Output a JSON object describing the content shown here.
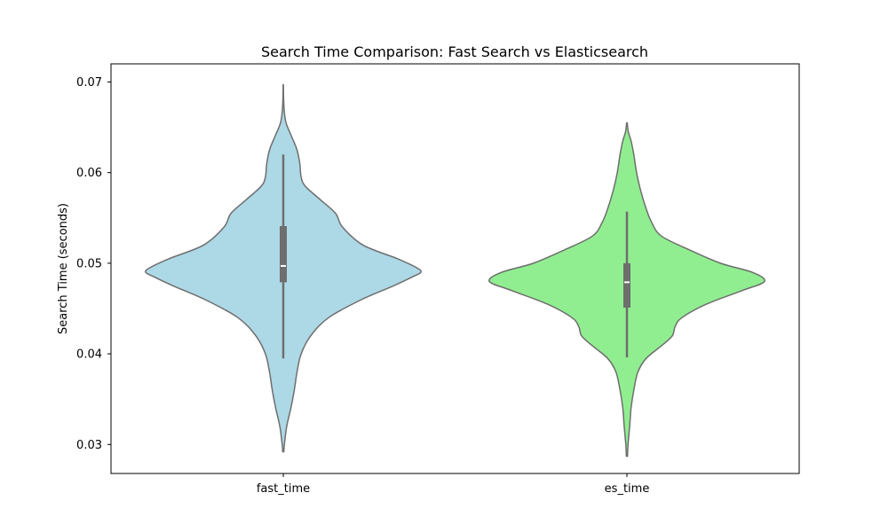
{
  "chart_data": {
    "type": "violin",
    "title": "Search Time Comparison: Fast Search vs Elasticsearch",
    "xlabel": "",
    "ylabel": "Search Time (seconds)",
    "categories": [
      "fast_time",
      "es_time"
    ],
    "ylim": [
      0.0268,
      0.072
    ],
    "yticks": [
      0.03,
      0.04,
      0.05,
      0.06,
      0.07
    ],
    "ytick_labels": [
      "0.03",
      "0.04",
      "0.05",
      "0.06",
      "0.07"
    ],
    "grid": false,
    "legend": "none",
    "series": [
      {
        "category": "fast_time",
        "color": "#add8e6",
        "edge_color": "#6e6e6e",
        "box": {
          "q1": 0.0479,
          "median": 0.0497,
          "q3": 0.0541,
          "whisker_low": 0.0395,
          "whisker_high": 0.062
        },
        "density": [
          [
            0.0292,
            0.004
          ],
          [
            0.03,
            0.008
          ],
          [
            0.032,
            0.025
          ],
          [
            0.034,
            0.055
          ],
          [
            0.036,
            0.08
          ],
          [
            0.038,
            0.1
          ],
          [
            0.04,
            0.13
          ],
          [
            0.042,
            0.2
          ],
          [
            0.044,
            0.33
          ],
          [
            0.046,
            0.57
          ],
          [
            0.0475,
            0.8
          ],
          [
            0.0485,
            0.94
          ],
          [
            0.049,
            1.0
          ],
          [
            0.0495,
            0.97
          ],
          [
            0.0505,
            0.83
          ],
          [
            0.052,
            0.58
          ],
          [
            0.054,
            0.43
          ],
          [
            0.0555,
            0.38
          ],
          [
            0.057,
            0.27
          ],
          [
            0.0585,
            0.16
          ],
          [
            0.0595,
            0.13
          ],
          [
            0.061,
            0.12
          ],
          [
            0.0625,
            0.1
          ],
          [
            0.064,
            0.06
          ],
          [
            0.0655,
            0.02
          ],
          [
            0.067,
            0.006
          ],
          [
            0.0685,
            0.002
          ],
          [
            0.0697,
            0.001
          ]
        ]
      },
      {
        "category": "es_time",
        "color": "#90ee90",
        "edge_color": "#6e6e6e",
        "box": {
          "q1": 0.0451,
          "median": 0.0479,
          "q3": 0.05,
          "whisker_low": 0.0396,
          "whisker_high": 0.0557
        },
        "density": [
          [
            0.0287,
            0.004
          ],
          [
            0.03,
            0.008
          ],
          [
            0.032,
            0.02
          ],
          [
            0.034,
            0.03
          ],
          [
            0.036,
            0.05
          ],
          [
            0.038,
            0.08
          ],
          [
            0.0395,
            0.14
          ],
          [
            0.041,
            0.26
          ],
          [
            0.042,
            0.33
          ],
          [
            0.043,
            0.35
          ],
          [
            0.044,
            0.4
          ],
          [
            0.0455,
            0.58
          ],
          [
            0.047,
            0.84
          ],
          [
            0.048,
            1.0
          ],
          [
            0.049,
            0.91
          ],
          [
            0.05,
            0.68
          ],
          [
            0.0515,
            0.45
          ],
          [
            0.053,
            0.25
          ],
          [
            0.0545,
            0.18
          ],
          [
            0.056,
            0.14
          ],
          [
            0.058,
            0.1
          ],
          [
            0.06,
            0.07
          ],
          [
            0.062,
            0.05
          ],
          [
            0.0635,
            0.03
          ],
          [
            0.0645,
            0.01
          ],
          [
            0.0655,
            0.002
          ]
        ]
      }
    ]
  }
}
